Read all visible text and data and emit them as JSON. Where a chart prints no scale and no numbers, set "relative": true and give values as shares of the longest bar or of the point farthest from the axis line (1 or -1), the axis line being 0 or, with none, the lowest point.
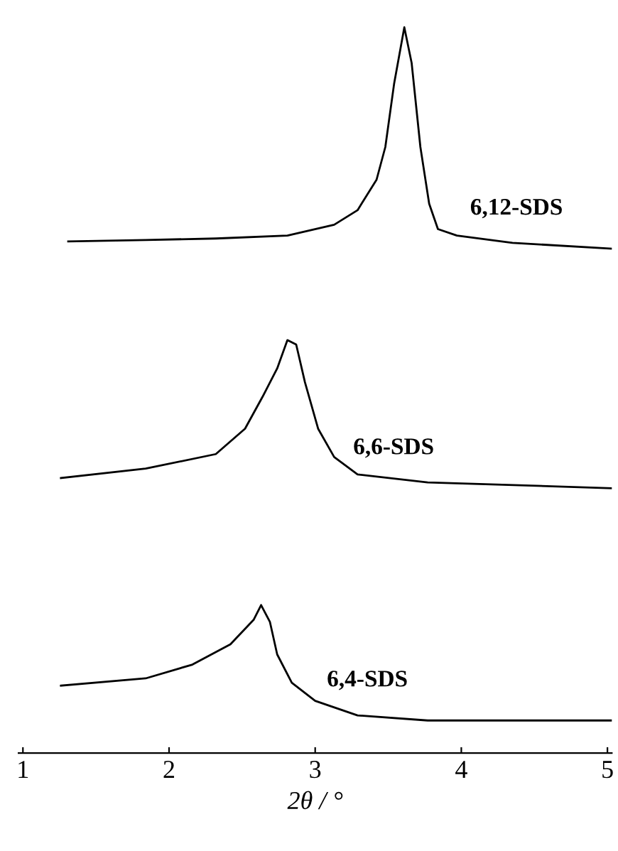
{
  "chart_data": {
    "type": "line",
    "relative": true,
    "xlabel": "2θ / °",
    "xlim": [
      0.97,
      5.03
    ],
    "xticks": [
      1,
      2,
      3,
      4,
      5
    ],
    "grid": false,
    "legend": false,
    "marker": "none",
    "line_style": "solid",
    "series": [
      {
        "name": "6,12-SDS",
        "color": "#000000",
        "x": [
          1.31,
          1.84,
          2.32,
          2.81,
          3.13,
          3.29,
          3.42,
          3.48,
          3.54,
          3.61,
          3.66,
          3.72,
          3.78,
          3.84,
          3.97,
          4.35,
          5.03
        ],
        "values": [
          0.705,
          0.707,
          0.709,
          0.713,
          0.728,
          0.748,
          0.79,
          0.835,
          0.922,
          1.0,
          0.951,
          0.835,
          0.757,
          0.722,
          0.713,
          0.703,
          0.695
        ]
      },
      {
        "name": "6,6-SDS",
        "color": "#000000",
        "x": [
          1.26,
          1.84,
          2.32,
          2.52,
          2.64,
          2.74,
          2.81,
          2.87,
          2.93,
          3.02,
          3.13,
          3.29,
          3.77,
          5.03
        ],
        "values": [
          0.379,
          0.392,
          0.412,
          0.447,
          0.491,
          0.53,
          0.569,
          0.563,
          0.511,
          0.447,
          0.408,
          0.384,
          0.373,
          0.365
        ]
      },
      {
        "name": "6,4-SDS",
        "color": "#000000",
        "x": [
          1.26,
          1.84,
          2.16,
          2.42,
          2.58,
          2.63,
          2.69,
          2.74,
          2.84,
          3.0,
          3.29,
          3.77,
          5.03
        ],
        "values": [
          0.093,
          0.103,
          0.122,
          0.15,
          0.184,
          0.204,
          0.181,
          0.136,
          0.097,
          0.072,
          0.052,
          0.045,
          0.045
        ]
      }
    ]
  }
}
